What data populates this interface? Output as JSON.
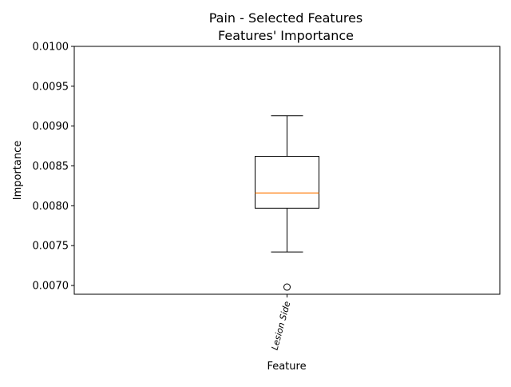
{
  "chart_data": {
    "type": "box",
    "title_line1": "Pain - Selected Features",
    "title_line2": "Features' Importance",
    "xlabel": "Feature",
    "ylabel": "Importance",
    "ylim": [
      0.00689,
      0.01
    ],
    "yticks": [
      "0.0070",
      "0.0075",
      "0.0080",
      "0.0085",
      "0.0090",
      "0.0095",
      "0.0100"
    ],
    "ytick_values": [
      0.007,
      0.0075,
      0.008,
      0.0085,
      0.009,
      0.0095,
      0.01
    ],
    "categories": [
      "Lesion Side"
    ],
    "boxes": [
      {
        "category": "Lesion Side",
        "whisker_low": 0.00742,
        "q1": 0.00797,
        "median": 0.00816,
        "q3": 0.00862,
        "whisker_high": 0.00913,
        "outliers": [
          0.00698
        ]
      }
    ],
    "grid": false,
    "colors": {
      "box": "#000000",
      "median": "#ff7f0e",
      "axes": "#000000"
    }
  }
}
